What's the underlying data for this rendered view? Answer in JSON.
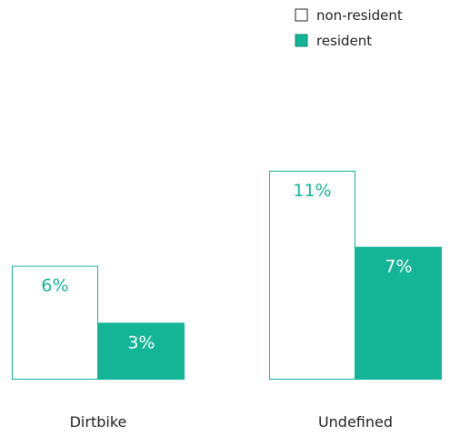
{
  "chart_data": {
    "type": "bar",
    "title": "",
    "xlabel": "",
    "ylabel": "",
    "categories": [
      "Dirtbike",
      "Undefined"
    ],
    "series": [
      {
        "name": "non-resident",
        "values": [
          6,
          11
        ],
        "labels": [
          "6%",
          "11%"
        ]
      },
      {
        "name": "resident",
        "values": [
          3,
          7
        ],
        "labels": [
          "3%",
          "7%"
        ]
      }
    ],
    "ylim": [
      0,
      11
    ],
    "grid": false,
    "legend_position": "top-right",
    "colors": {
      "resident": "#14b497",
      "non_resident_outline": "#14b497",
      "non_resident_label": "#14b497",
      "resident_label": "#ffffff",
      "category_label": "#222222",
      "legend_text": "#222222"
    }
  }
}
